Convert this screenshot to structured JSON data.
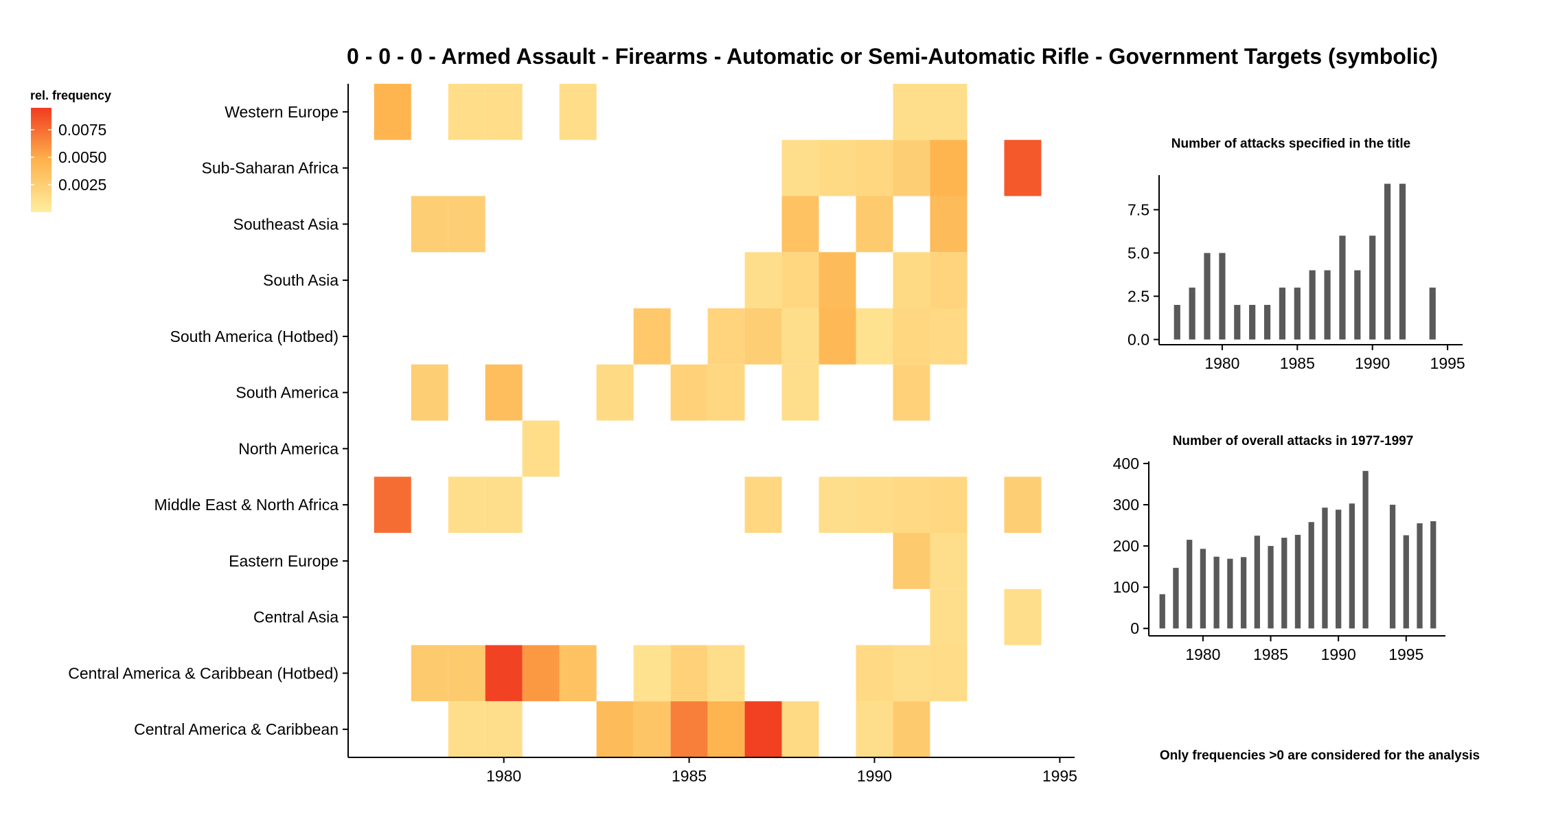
{
  "title": "0 - 0 - 0 - Armed Assault - Firearms - Automatic or Semi-Automatic Rifle - Government Targets (symbolic)",
  "note": "Only frequencies >0 are considered for the analysis",
  "colors": {
    "low": "#FFEDA0",
    "mid": "#FEB24C",
    "high": "#F03B20",
    "bar": "#595959",
    "axis": "#000000"
  },
  "chart_data": [
    {
      "type": "heatmap",
      "title": "0 - 0 - 0 - Armed Assault - Firearms - Automatic or Semi-Automatic Rifle - Government Targets (symbolic)",
      "xlabel": "",
      "ylabel": "",
      "xlim": [
        1975.8,
        1995.4
      ],
      "xticks": [
        1980,
        1985,
        1990,
        1995
      ],
      "regions": [
        "Western Europe",
        "Sub-Saharan Africa",
        "Southeast Asia",
        "South Asia",
        "South America (Hotbed)",
        "South America",
        "North America",
        "Middle East & North Africa",
        "Eastern Europe",
        "Central Asia",
        "Central America & Caribbean (Hotbed)",
        "Central America & Caribbean"
      ],
      "legend": {
        "title": "rel. frequency",
        "placement": "top-left",
        "min": 0,
        "max": 0.0095,
        "ticks": [
          0.0025,
          0.005,
          0.0075
        ],
        "tick_labels": [
          "0.0025",
          "0.0050",
          "0.0075"
        ]
      },
      "cells": [
        {
          "region": "Western Europe",
          "year": 1977,
          "value": 0.0045
        },
        {
          "region": "Western Europe",
          "year": 1979,
          "value": 0.0013
        },
        {
          "region": "Western Europe",
          "year": 1980,
          "value": 0.0013
        },
        {
          "region": "Western Europe",
          "year": 1982,
          "value": 0.0013
        },
        {
          "region": "Western Europe",
          "year": 1991,
          "value": 0.0012
        },
        {
          "region": "Western Europe",
          "year": 1992,
          "value": 0.0012
        },
        {
          "region": "Sub-Saharan Africa",
          "year": 1988,
          "value": 0.0012
        },
        {
          "region": "Sub-Saharan Africa",
          "year": 1989,
          "value": 0.0015
        },
        {
          "region": "Sub-Saharan Africa",
          "year": 1990,
          "value": 0.0018
        },
        {
          "region": "Sub-Saharan Africa",
          "year": 1991,
          "value": 0.0025
        },
        {
          "region": "Sub-Saharan Africa",
          "year": 1992,
          "value": 0.0045
        },
        {
          "region": "Sub-Saharan Africa",
          "year": 1994,
          "value": 0.0083
        },
        {
          "region": "Southeast Asia",
          "year": 1978,
          "value": 0.0025
        },
        {
          "region": "Southeast Asia",
          "year": 1979,
          "value": 0.0025
        },
        {
          "region": "Southeast Asia",
          "year": 1988,
          "value": 0.0035
        },
        {
          "region": "Southeast Asia",
          "year": 1990,
          "value": 0.0028
        },
        {
          "region": "Southeast Asia",
          "year": 1992,
          "value": 0.004
        },
        {
          "region": "South Asia",
          "year": 1987,
          "value": 0.0012
        },
        {
          "region": "South Asia",
          "year": 1988,
          "value": 0.0018
        },
        {
          "region": "South Asia",
          "year": 1989,
          "value": 0.004
        },
        {
          "region": "South Asia",
          "year": 1991,
          "value": 0.0015
        },
        {
          "region": "South Asia",
          "year": 1992,
          "value": 0.002
        },
        {
          "region": "South America (Hotbed)",
          "year": 1984,
          "value": 0.003
        },
        {
          "region": "South America (Hotbed)",
          "year": 1986,
          "value": 0.002
        },
        {
          "region": "South America (Hotbed)",
          "year": 1987,
          "value": 0.0025
        },
        {
          "region": "South America (Hotbed)",
          "year": 1988,
          "value": 0.0012
        },
        {
          "region": "South America (Hotbed)",
          "year": 1989,
          "value": 0.0042
        },
        {
          "region": "South America (Hotbed)",
          "year": 1990,
          "value": 0.0009
        },
        {
          "region": "South America (Hotbed)",
          "year": 1991,
          "value": 0.0018
        },
        {
          "region": "South America (Hotbed)",
          "year": 1992,
          "value": 0.0016
        },
        {
          "region": "South America",
          "year": 1978,
          "value": 0.0025
        },
        {
          "region": "South America",
          "year": 1980,
          "value": 0.0038
        },
        {
          "region": "South America",
          "year": 1983,
          "value": 0.0015
        },
        {
          "region": "South America",
          "year": 1985,
          "value": 0.0022
        },
        {
          "region": "South America",
          "year": 1986,
          "value": 0.0018
        },
        {
          "region": "South America",
          "year": 1988,
          "value": 0.0012
        },
        {
          "region": "South America",
          "year": 1991,
          "value": 0.0022
        },
        {
          "region": "North America",
          "year": 1981,
          "value": 0.0013
        },
        {
          "region": "Middle East & North Africa",
          "year": 1977,
          "value": 0.0075
        },
        {
          "region": "Middle East & North Africa",
          "year": 1979,
          "value": 0.0012
        },
        {
          "region": "Middle East & North Africa",
          "year": 1980,
          "value": 0.0012
        },
        {
          "region": "Middle East & North Africa",
          "year": 1987,
          "value": 0.0018
        },
        {
          "region": "Middle East & North Africa",
          "year": 1989,
          "value": 0.0012
        },
        {
          "region": "Middle East & North Africa",
          "year": 1990,
          "value": 0.0014
        },
        {
          "region": "Middle East & North Africa",
          "year": 1991,
          "value": 0.0016
        },
        {
          "region": "Middle East & North Africa",
          "year": 1992,
          "value": 0.0018
        },
        {
          "region": "Middle East & North Africa",
          "year": 1994,
          "value": 0.0025
        },
        {
          "region": "Eastern Europe",
          "year": 1991,
          "value": 0.0028
        },
        {
          "region": "Eastern Europe",
          "year": 1992,
          "value": 0.0012
        },
        {
          "region": "Central Asia",
          "year": 1992,
          "value": 0.0012
        },
        {
          "region": "Central Asia",
          "year": 1994,
          "value": 0.0012
        },
        {
          "region": "Central America & Caribbean (Hotbed)",
          "year": 1978,
          "value": 0.0028
        },
        {
          "region": "Central America & Caribbean (Hotbed)",
          "year": 1979,
          "value": 0.0028
        },
        {
          "region": "Central America & Caribbean (Hotbed)",
          "year": 1980,
          "value": 0.0092
        },
        {
          "region": "Central America & Caribbean (Hotbed)",
          "year": 1981,
          "value": 0.0058
        },
        {
          "region": "Central America & Caribbean (Hotbed)",
          "year": 1982,
          "value": 0.0035
        },
        {
          "region": "Central America & Caribbean (Hotbed)",
          "year": 1984,
          "value": 0.0009
        },
        {
          "region": "Central America & Caribbean (Hotbed)",
          "year": 1985,
          "value": 0.0022
        },
        {
          "region": "Central America & Caribbean (Hotbed)",
          "year": 1986,
          "value": 0.0012
        },
        {
          "region": "Central America & Caribbean (Hotbed)",
          "year": 1990,
          "value": 0.0016
        },
        {
          "region": "Central America & Caribbean (Hotbed)",
          "year": 1991,
          "value": 0.0012
        },
        {
          "region": "Central America & Caribbean (Hotbed)",
          "year": 1992,
          "value": 0.0014
        },
        {
          "region": "Central America & Caribbean",
          "year": 1979,
          "value": 0.0012
        },
        {
          "region": "Central America & Caribbean",
          "year": 1980,
          "value": 0.0012
        },
        {
          "region": "Central America & Caribbean",
          "year": 1983,
          "value": 0.004
        },
        {
          "region": "Central America & Caribbean",
          "year": 1984,
          "value": 0.0032
        },
        {
          "region": "Central America & Caribbean",
          "year": 1985,
          "value": 0.0068
        },
        {
          "region": "Central America & Caribbean",
          "year": 1986,
          "value": 0.0045
        },
        {
          "region": "Central America & Caribbean",
          "year": 1987,
          "value": 0.0093
        },
        {
          "region": "Central America & Caribbean",
          "year": 1988,
          "value": 0.0015
        },
        {
          "region": "Central America & Caribbean",
          "year": 1990,
          "value": 0.0012
        },
        {
          "region": "Central America & Caribbean",
          "year": 1991,
          "value": 0.0028
        }
      ]
    },
    {
      "type": "bar",
      "title": "Number of attacks specified in the title",
      "xlabel": "",
      "ylabel": "",
      "x": [
        1977,
        1978,
        1979,
        1980,
        1981,
        1982,
        1983,
        1984,
        1985,
        1986,
        1987,
        1988,
        1989,
        1990,
        1991,
        1992,
        1994
      ],
      "values": [
        2,
        3,
        5,
        5,
        2,
        2,
        2,
        3,
        3,
        4,
        4,
        6,
        4,
        6,
        9,
        9,
        3
      ],
      "xlim": [
        1975.8,
        1996.0
      ],
      "ylim": [
        -0.3,
        9.5
      ],
      "xticks": [
        1980,
        1985,
        1990,
        1995
      ],
      "yticks": [
        0,
        2.5,
        5,
        7.5
      ],
      "ytick_labels": [
        "0.0",
        "2.5",
        "5.0",
        "7.5"
      ]
    },
    {
      "type": "bar",
      "title": "Number of overall attacks in 1977-1997",
      "xlabel": "",
      "ylabel": "",
      "x": [
        1977,
        1978,
        1979,
        1980,
        1981,
        1982,
        1983,
        1984,
        1985,
        1986,
        1987,
        1988,
        1989,
        1990,
        1991,
        1992,
        1994,
        1995,
        1996,
        1997
      ],
      "values": [
        83,
        147,
        215,
        193,
        174,
        169,
        173,
        225,
        200,
        220,
        227,
        258,
        293,
        288,
        303,
        382,
        300,
        226,
        255,
        260
      ],
      "xlim": [
        1976.0,
        1997.9
      ],
      "ylim": [
        -18,
        405
      ],
      "xticks": [
        1980,
        1985,
        1990,
        1995
      ],
      "yticks": [
        0,
        100,
        200,
        300,
        400
      ],
      "ytick_labels": [
        "0",
        "100",
        "200",
        "300",
        "400"
      ]
    }
  ]
}
